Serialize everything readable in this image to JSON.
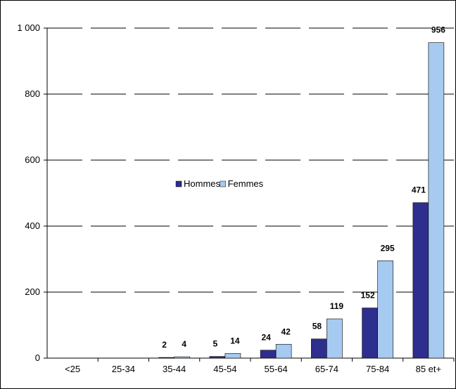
{
  "chart_data": {
    "type": "bar",
    "title": "",
    "xlabel": "",
    "ylabel": "",
    "categories": [
      "<25",
      "25-34",
      "35-44",
      "45-54",
      "55-64",
      "65-74",
      "75-84",
      "85 et+"
    ],
    "series": [
      {
        "name": "Hommes",
        "color": "#2E2E8F",
        "values": [
          0,
          0,
          2,
          5,
          24,
          58,
          152,
          471
        ],
        "labels": [
          "",
          "",
          "2",
          "5",
          "24",
          "58",
          "152",
          "471"
        ]
      },
      {
        "name": "Femmes",
        "color": "#A6CAF0",
        "values": [
          0,
          0,
          4,
          14,
          42,
          119,
          295,
          956
        ],
        "labels": [
          "",
          "",
          "4",
          "14",
          "42",
          "119",
          "295",
          "956"
        ]
      }
    ],
    "ylim": [
      0,
      1000
    ],
    "yticks": [
      0,
      200,
      400,
      600,
      800,
      1000
    ],
    "ytick_labels": [
      "0",
      "200",
      "400",
      "600",
      "800",
      "1 000"
    ],
    "grid": "dashed horizontal",
    "legend_placement": "center-left"
  }
}
